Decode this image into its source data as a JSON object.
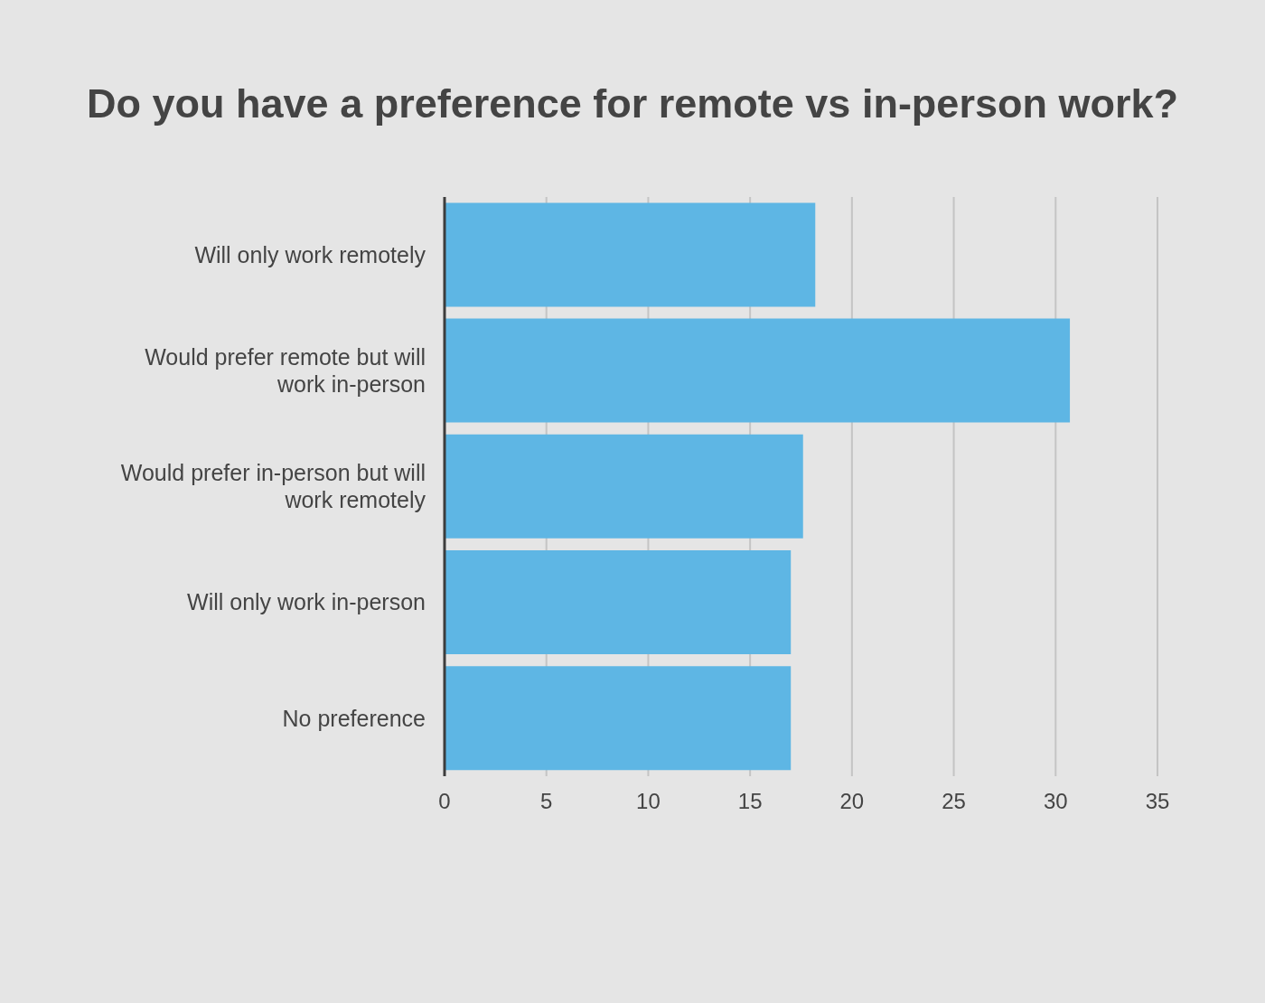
{
  "chart_data": {
    "type": "bar",
    "orientation": "horizontal",
    "title": "Do you have a preference for remote vs in-person work?",
    "categories": [
      "Will only work remotely",
      "Would prefer remote but will work in-person",
      "Would prefer in-person but will work remotely",
      "Will only work in-person",
      "No preference"
    ],
    "values": [
      18.2,
      30.7,
      17.6,
      17,
      17
    ],
    "color": "#5eb6e4",
    "xlim": [
      0,
      35
    ],
    "xticks": [
      0,
      5,
      10,
      15,
      20,
      25,
      30,
      35
    ],
    "grid": "x"
  }
}
